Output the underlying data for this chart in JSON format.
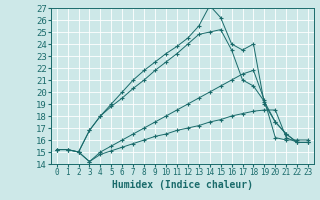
{
  "xlabel": "Humidex (Indice chaleur)",
  "bg_color": "#cde8e8",
  "line_color": "#1a6b6b",
  "grid_color": "#b8d8d8",
  "xlim": [
    -0.5,
    23.5
  ],
  "ylim": [
    14,
    27
  ],
  "xticks": [
    0,
    1,
    2,
    3,
    4,
    5,
    6,
    7,
    8,
    9,
    10,
    11,
    12,
    13,
    14,
    15,
    16,
    17,
    18,
    19,
    20,
    21,
    22,
    23
  ],
  "yticks": [
    14,
    15,
    16,
    17,
    18,
    19,
    20,
    21,
    22,
    23,
    24,
    25,
    26,
    27
  ],
  "line1_x": [
    0,
    1,
    2,
    3,
    4,
    5,
    6,
    7,
    8,
    9,
    10,
    11,
    12,
    13,
    14,
    15,
    16,
    17,
    18,
    19,
    20,
    21,
    22,
    23
  ],
  "line1_y": [
    15.2,
    15.2,
    15.0,
    14.2,
    14.8,
    15.1,
    15.4,
    15.7,
    16.0,
    16.3,
    16.5,
    16.8,
    17.0,
    17.2,
    17.5,
    17.7,
    18.0,
    18.2,
    18.4,
    18.5,
    18.5,
    16.2,
    15.8,
    15.8
  ],
  "line2_x": [
    0,
    1,
    2,
    3,
    4,
    5,
    6,
    7,
    8,
    9,
    10,
    11,
    12,
    13,
    14,
    15,
    16,
    17,
    18,
    19,
    20,
    21,
    22,
    23
  ],
  "line2_y": [
    15.2,
    15.2,
    15.0,
    14.2,
    15.0,
    15.5,
    16.0,
    16.5,
    17.0,
    17.5,
    18.0,
    18.5,
    19.0,
    19.5,
    20.0,
    20.5,
    21.0,
    21.5,
    21.8,
    19.3,
    16.2,
    16.0,
    16.0,
    16.0
  ],
  "line3_x": [
    0,
    1,
    2,
    3,
    4,
    5,
    6,
    7,
    8,
    9,
    10,
    11,
    12,
    13,
    14,
    15,
    16,
    17,
    18,
    19,
    20,
    21,
    22,
    23
  ],
  "line3_y": [
    15.2,
    15.2,
    15.0,
    16.8,
    18.0,
    18.8,
    19.5,
    20.3,
    21.0,
    21.8,
    22.5,
    23.2,
    24.0,
    24.8,
    25.0,
    25.2,
    23.5,
    21.0,
    20.5,
    19.2,
    17.5,
    16.5,
    15.8,
    15.8
  ],
  "line4_x": [
    2,
    3,
    4,
    5,
    6,
    7,
    8,
    9,
    10,
    11,
    12,
    13,
    14,
    15,
    16,
    17,
    18,
    19,
    20,
    21,
    22,
    23
  ],
  "line4_y": [
    15.0,
    16.8,
    18.0,
    19.0,
    20.0,
    21.0,
    21.8,
    22.5,
    23.2,
    23.8,
    24.5,
    25.5,
    27.2,
    26.2,
    24.0,
    23.5,
    24.0,
    19.0,
    17.5,
    16.5,
    15.8,
    15.8
  ],
  "xlabel_fontsize": 7,
  "ytick_fontsize": 6.5,
  "xtick_fontsize": 5.5
}
